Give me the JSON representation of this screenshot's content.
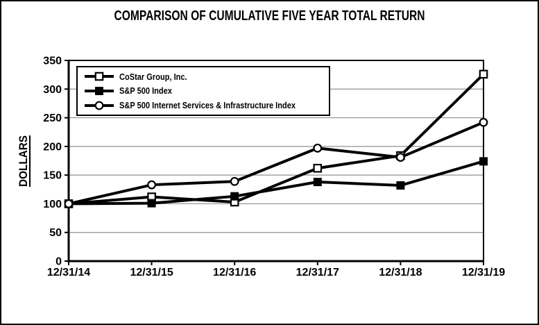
{
  "chart_data": {
    "type": "line",
    "title": "COMPARISON OF CUMULATIVE FIVE YEAR TOTAL RETURN",
    "ylabel": "DOLLARS",
    "xlabel": "",
    "categories": [
      "12/31/14",
      "12/31/15",
      "12/31/16",
      "12/31/17",
      "12/31/18",
      "12/31/19"
    ],
    "series": [
      {
        "name": "CoStar Group, Inc.",
        "marker": "square-open-marker",
        "values": [
          100,
          112,
          103,
          162,
          184,
          326
        ]
      },
      {
        "name": "S&P 500 Index",
        "marker": "square-filled-marker",
        "values": [
          100,
          101,
          113,
          138,
          132,
          174
        ]
      },
      {
        "name": "S&P 500 Internet Services & Infrastructure Index",
        "marker": "circle-open-marker",
        "values": [
          100,
          133,
          139,
          197,
          181,
          242
        ]
      }
    ],
    "ylim": [
      0,
      350
    ],
    "yticks": [
      0,
      50,
      100,
      150,
      200,
      250,
      300,
      350
    ],
    "grid": true,
    "legend_position": "top-left",
    "colors": {
      "line": "#000000",
      "grid": "#909090",
      "background": "#ffffff",
      "border": "#000000",
      "text": "#000000"
    }
  }
}
